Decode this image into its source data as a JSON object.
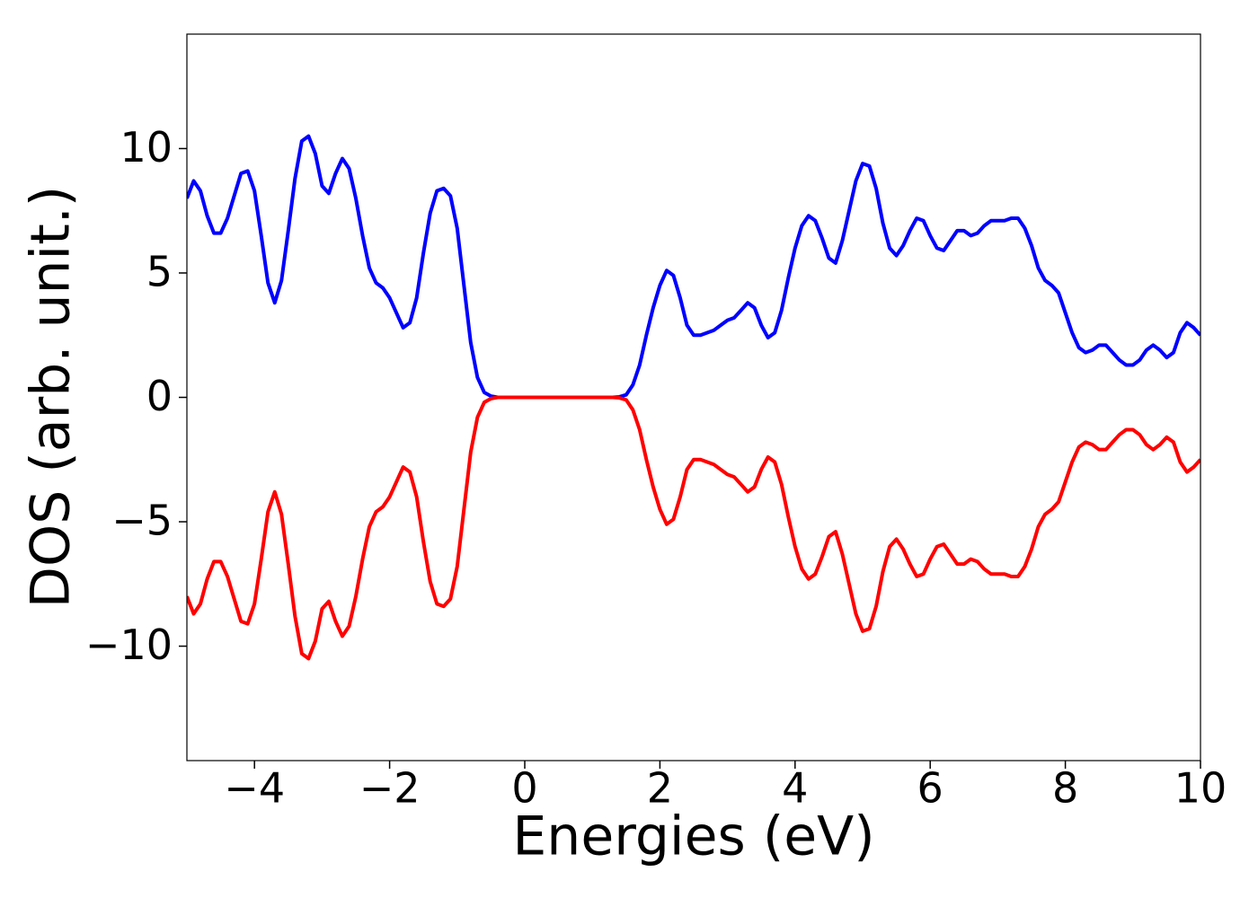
{
  "chart_data": {
    "type": "line",
    "xlabel": "Energies (eV)",
    "ylabel": "DOS (arb. unit.)",
    "xlim": [
      -5,
      10
    ],
    "ylim": [
      -14.6,
      14.6
    ],
    "xticks": [
      {
        "value": -4,
        "label": "−4"
      },
      {
        "value": -2,
        "label": "−2"
      },
      0,
      2,
      4,
      6,
      8,
      10
    ],
    "yticks": [
      {
        "value": -10,
        "label": "−10"
      },
      {
        "value": -5,
        "label": "−5"
      },
      0,
      5,
      10
    ],
    "x": [
      -5,
      -4.9,
      -4.8,
      -4.7,
      -4.6,
      -4.5,
      -4.4,
      -4.3,
      -4.2,
      -4.1,
      -4,
      -3.9,
      -3.8,
      -3.7,
      -3.6,
      -3.5,
      -3.4,
      -3.3,
      -3.2,
      -3.1,
      -3,
      -2.9,
      -2.8,
      -2.7,
      -2.6,
      -2.5,
      -2.4,
      -2.3,
      -2.2,
      -2.1,
      -2,
      -1.9,
      -1.8,
      -1.7,
      -1.6,
      -1.5,
      -1.4,
      -1.3,
      -1.2,
      -1.1,
      -1,
      -0.9,
      -0.8,
      -0.7,
      -0.6,
      -0.5,
      -0.4,
      -0.3,
      -0.2,
      -0.1,
      0,
      0.1,
      0.2,
      0.3,
      0.4,
      0.5,
      0.6,
      0.7,
      0.8,
      0.9,
      1,
      1.1,
      1.2,
      1.3,
      1.4,
      1.5,
      1.6,
      1.7,
      1.8,
      1.9,
      2,
      2.1,
      2.2,
      2.3,
      2.4,
      2.5,
      2.6,
      2.7,
      2.8,
      2.9,
      3,
      3.1,
      3.2,
      3.3,
      3.4,
      3.5,
      3.6,
      3.7,
      3.8,
      3.9,
      4,
      4.1,
      4.2,
      4.3,
      4.4,
      4.5,
      4.6,
      4.7,
      4.8,
      4.9,
      5,
      5.1,
      5.2,
      5.3,
      5.4,
      5.5,
      5.6,
      5.7,
      5.8,
      5.9,
      6,
      6.1,
      6.2,
      6.3,
      6.4,
      6.5,
      6.6,
      6.7,
      6.8,
      6.9,
      7,
      7.1,
      7.2,
      7.3,
      7.4,
      7.5,
      7.6,
      7.7,
      7.8,
      7.9,
      8,
      8.1,
      8.2,
      8.3,
      8.4,
      8.5,
      8.6,
      8.7,
      8.8,
      8.9,
      9,
      9.1,
      9.2,
      9.3,
      9.4,
      9.5,
      9.6,
      9.7,
      9.8,
      9.9,
      10
    ],
    "series": [
      {
        "color": "#0000ff",
        "values": [
          8.0,
          8.7,
          8.3,
          7.3,
          6.6,
          6.6,
          7.2,
          8.1,
          9.0,
          9.1,
          8.3,
          6.5,
          4.6,
          3.8,
          4.7,
          6.7,
          8.8,
          10.3,
          10.5,
          9.8,
          8.5,
          8.2,
          9.0,
          9.6,
          9.2,
          8.0,
          6.5,
          5.2,
          4.6,
          4.4,
          4.0,
          3.4,
          2.8,
          3.0,
          4.0,
          5.8,
          7.4,
          8.3,
          8.4,
          8.1,
          6.8,
          4.5,
          2.2,
          0.8,
          0.2,
          0.05,
          0,
          0,
          0,
          0,
          0,
          0,
          0,
          0,
          0,
          0,
          0,
          0,
          0,
          0,
          0,
          0,
          0,
          0,
          0.02,
          0.1,
          0.5,
          1.3,
          2.5,
          3.6,
          4.5,
          5.1,
          4.9,
          4.0,
          2.9,
          2.5,
          2.5,
          2.6,
          2.7,
          2.9,
          3.1,
          3.2,
          3.5,
          3.8,
          3.6,
          2.9,
          2.4,
          2.6,
          3.5,
          4.8,
          6.0,
          6.9,
          7.3,
          7.1,
          6.4,
          5.6,
          5.4,
          6.3,
          7.5,
          8.7,
          9.4,
          9.3,
          8.4,
          7.0,
          6.0,
          5.7,
          6.1,
          6.7,
          7.2,
          7.1,
          6.5,
          6.0,
          5.9,
          6.3,
          6.7,
          6.7,
          6.5,
          6.6,
          6.9,
          7.1,
          7.1,
          7.1,
          7.2,
          7.2,
          6.8,
          6.1,
          5.2,
          4.7,
          4.5,
          4.2,
          3.4,
          2.6,
          2.0,
          1.8,
          1.9,
          2.1,
          2.1,
          1.8,
          1.5,
          1.3,
          1.3,
          1.5,
          1.9,
          2.1,
          1.9,
          1.6,
          1.8,
          2.6,
          3.0,
          2.8,
          2.5
        ]
      },
      {
        "color": "#ff0000",
        "values": [
          -8.0,
          -8.7,
          -8.3,
          -7.3,
          -6.6,
          -6.6,
          -7.2,
          -8.1,
          -9.0,
          -9.1,
          -8.3,
          -6.5,
          -4.6,
          -3.8,
          -4.7,
          -6.7,
          -8.8,
          -10.3,
          -10.5,
          -9.8,
          -8.5,
          -8.2,
          -9.0,
          -9.6,
          -9.2,
          -8.0,
          -6.5,
          -5.2,
          -4.6,
          -4.4,
          -4.0,
          -3.4,
          -2.8,
          -3.0,
          -4.0,
          -5.8,
          -7.4,
          -8.3,
          -8.4,
          -8.1,
          -6.8,
          -4.5,
          -2.2,
          -0.8,
          -0.2,
          -0.05,
          0,
          0,
          0,
          0,
          0,
          0,
          0,
          0,
          0,
          0,
          0,
          0,
          0,
          0,
          0,
          0,
          0,
          0,
          -0.02,
          -0.1,
          -0.5,
          -1.3,
          -2.5,
          -3.6,
          -4.5,
          -5.1,
          -4.9,
          -4.0,
          -2.9,
          -2.5,
          -2.5,
          -2.6,
          -2.7,
          -2.9,
          -3.1,
          -3.2,
          -3.5,
          -3.8,
          -3.6,
          -2.9,
          -2.4,
          -2.6,
          -3.5,
          -4.8,
          -6.0,
          -6.9,
          -7.3,
          -7.1,
          -6.4,
          -5.6,
          -5.4,
          -6.3,
          -7.5,
          -8.7,
          -9.4,
          -9.3,
          -8.4,
          -7.0,
          -6.0,
          -5.7,
          -6.1,
          -6.7,
          -7.2,
          -7.1,
          -6.5,
          -6.0,
          -5.9,
          -6.3,
          -6.7,
          -6.7,
          -6.5,
          -6.6,
          -6.9,
          -7.1,
          -7.1,
          -7.1,
          -7.2,
          -7.2,
          -6.8,
          -6.1,
          -5.2,
          -4.7,
          -4.5,
          -4.2,
          -3.4,
          -2.6,
          -2.0,
          -1.8,
          -1.9,
          -2.1,
          -2.1,
          -1.8,
          -1.5,
          -1.3,
          -1.3,
          -1.5,
          -1.9,
          -2.1,
          -1.9,
          -1.6,
          -1.8,
          -2.6,
          -3.0,
          -2.8,
          -2.5
        ]
      }
    ]
  }
}
